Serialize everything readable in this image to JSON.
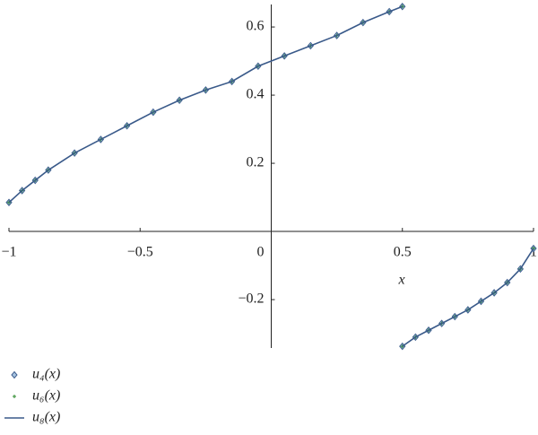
{
  "chart_data": {
    "type": "line",
    "xlabel": "x",
    "x": [
      -1,
      -0.95,
      -0.9,
      -0.85,
      -0.75,
      -0.65,
      -0.55,
      -0.45,
      -0.35,
      -0.25,
      -0.15,
      -0.05,
      0.05,
      0.15,
      0.25,
      0.35,
      0.45,
      0.5,
      0.5,
      0.5,
      0.55,
      0.6,
      0.65,
      0.7,
      0.75,
      0.8,
      0.85,
      0.9,
      0.95,
      1
    ],
    "series": [
      {
        "name": "u₄(x)",
        "color": "#3f5f8f",
        "marker": "diamond",
        "values": [
          0.085,
          0.12,
          0.15,
          0.18,
          0.23,
          0.27,
          0.31,
          0.35,
          0.385,
          0.415,
          0.44,
          0.485,
          0.515,
          0.545,
          0.575,
          0.613,
          0.645,
          0.66,
          null,
          -0.337,
          -0.31,
          -0.29,
          -0.27,
          -0.25,
          -0.23,
          -0.205,
          -0.18,
          -0.15,
          -0.11,
          -0.05
        ]
      },
      {
        "name": "u₆(x)",
        "color": "#2e8b2e",
        "marker": "plus",
        "values": [
          0.085,
          0.12,
          0.15,
          0.18,
          0.23,
          0.27,
          0.31,
          0.35,
          0.385,
          0.415,
          0.44,
          0.485,
          0.515,
          0.545,
          0.575,
          0.613,
          0.645,
          0.66,
          null,
          -0.337,
          -0.31,
          -0.29,
          -0.27,
          -0.25,
          -0.23,
          -0.205,
          -0.18,
          -0.15,
          -0.11,
          -0.05
        ]
      },
      {
        "name": "u₈(x)",
        "color": "#3a5a8a",
        "marker": "line",
        "values": [
          0.085,
          0.12,
          0.15,
          0.18,
          0.23,
          0.27,
          0.31,
          0.35,
          0.385,
          0.415,
          0.44,
          0.485,
          0.515,
          0.545,
          0.575,
          0.613,
          0.645,
          0.66,
          null,
          -0.337,
          -0.31,
          -0.29,
          -0.27,
          -0.25,
          -0.23,
          -0.205,
          -0.18,
          -0.15,
          -0.11,
          -0.05
        ]
      }
    ],
    "xlim": [
      -1,
      1
    ],
    "ylim": [
      -0.342,
      0.666
    ],
    "xticks": [
      {
        "value": -1,
        "label": "−1"
      },
      {
        "value": -0.5,
        "label": "−0.5"
      },
      0,
      0.5,
      1
    ],
    "yticks": [
      {
        "value": -0.2,
        "label": "−0.2"
      },
      0.2,
      0.4,
      0.6
    ],
    "legend": "bottom-left"
  }
}
